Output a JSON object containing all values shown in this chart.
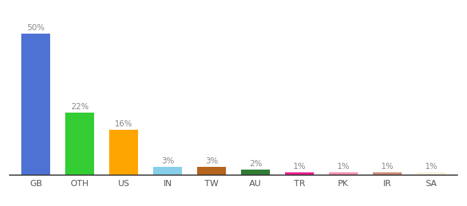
{
  "categories": [
    "GB",
    "OTH",
    "US",
    "IN",
    "TW",
    "AU",
    "TR",
    "PK",
    "IR",
    "SA"
  ],
  "values": [
    50,
    22,
    16,
    3,
    3,
    2,
    1,
    1,
    1,
    1
  ],
  "labels": [
    "50%",
    "22%",
    "16%",
    "3%",
    "3%",
    "2%",
    "1%",
    "1%",
    "1%",
    "1%"
  ],
  "bar_colors": [
    "#4d72d4",
    "#33cc33",
    "#ffa500",
    "#87ceeb",
    "#b5651d",
    "#2e7d32",
    "#e91e8c",
    "#f48fb1",
    "#cd8c78",
    "#f5f0dc"
  ],
  "background_color": "#ffffff",
  "ylim": [
    0,
    56
  ],
  "bar_width": 0.65,
  "label_color": "#888888",
  "label_fontsize": 8.5,
  "tick_fontsize": 9,
  "tick_color": "#555555"
}
